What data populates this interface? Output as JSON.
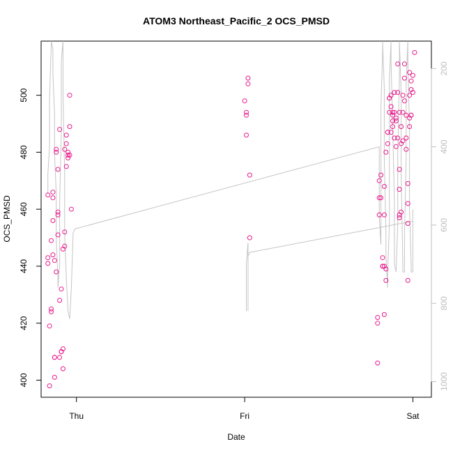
{
  "chart_data": {
    "type": "scatter",
    "title": "ATOM3 Northeast_Pacific_2 OCS_PMSD",
    "xlabel": "Date",
    "ylabel": "OCS_PMSD",
    "x_tick_labels": [
      "Thu",
      "Fri",
      "Sat"
    ],
    "x_tick_values": [
      0,
      1,
      2
    ],
    "y_ticks": [
      400,
      420,
      440,
      460,
      480,
      500
    ],
    "y_range": [
      394,
      519
    ],
    "secondary_axis": {
      "ticks": [
        200,
        400,
        600,
        800,
        1000
      ],
      "range": [
        1040,
        130
      ],
      "direction": "reversed",
      "color": "#bdbdbd"
    },
    "x_range": [
      -0.21,
      2.11
    ],
    "point_color": "#e8198b",
    "line_color": "#c4c4c4",
    "grid": false,
    "points": [
      [
        -0.17,
        465
      ],
      [
        -0.17,
        443
      ],
      [
        -0.17,
        441
      ],
      [
        -0.16,
        419
      ],
      [
        -0.16,
        398
      ],
      [
        -0.15,
        424
      ],
      [
        -0.15,
        425
      ],
      [
        -0.15,
        449
      ],
      [
        -0.14,
        456
      ],
      [
        -0.14,
        466
      ],
      [
        -0.14,
        464
      ],
      [
        -0.14,
        444
      ],
      [
        -0.13,
        408
      ],
      [
        -0.13,
        408
      ],
      [
        -0.13,
        401
      ],
      [
        -0.13,
        442
      ],
      [
        -0.12,
        438
      ],
      [
        -0.12,
        480
      ],
      [
        -0.12,
        481
      ],
      [
        -0.11,
        459
      ],
      [
        -0.11,
        451
      ],
      [
        -0.11,
        474
      ],
      [
        -0.11,
        458
      ],
      [
        -0.1,
        488
      ],
      [
        -0.1,
        428
      ],
      [
        -0.1,
        408
      ],
      [
        -0.09,
        410
      ],
      [
        -0.09,
        432
      ],
      [
        -0.09,
        410
      ],
      [
        -0.08,
        411
      ],
      [
        -0.08,
        404
      ],
      [
        -0.08,
        446
      ],
      [
        -0.07,
        447
      ],
      [
        -0.07,
        452
      ],
      [
        -0.07,
        481
      ],
      [
        -0.06,
        475
      ],
      [
        -0.06,
        483
      ],
      [
        -0.06,
        486
      ],
      [
        -0.05,
        480
      ],
      [
        -0.05,
        478
      ],
      [
        -0.05,
        479
      ],
      [
        -0.04,
        479
      ],
      [
        -0.04,
        500
      ],
      [
        -0.04,
        489
      ],
      [
        -0.03,
        460
      ],
      [
        1.0,
        498
      ],
      [
        1.01,
        486
      ],
      [
        1.01,
        494
      ],
      [
        1.01,
        493
      ],
      [
        1.02,
        506
      ],
      [
        1.02,
        504
      ],
      [
        1.03,
        472
      ],
      [
        1.03,
        450
      ],
      [
        1.79,
        406
      ],
      [
        1.79,
        422
      ],
      [
        1.79,
        420
      ],
      [
        1.8,
        458
      ],
      [
        1.8,
        470
      ],
      [
        1.8,
        464
      ],
      [
        1.81,
        464
      ],
      [
        1.81,
        472
      ],
      [
        1.82,
        440
      ],
      [
        1.82,
        443
      ],
      [
        1.82,
        440
      ],
      [
        1.83,
        423
      ],
      [
        1.83,
        458
      ],
      [
        1.83,
        468
      ],
      [
        1.83,
        440
      ],
      [
        1.84,
        435
      ],
      [
        1.84,
        439
      ],
      [
        1.84,
        480
      ],
      [
        1.85,
        483
      ],
      [
        1.85,
        487
      ],
      [
        1.85,
        487
      ],
      [
        1.86,
        494
      ],
      [
        1.86,
        499
      ],
      [
        1.86,
        499
      ],
      [
        1.87,
        500
      ],
      [
        1.87,
        487
      ],
      [
        1.87,
        496
      ],
      [
        1.88,
        493
      ],
      [
        1.88,
        489
      ],
      [
        1.88,
        491
      ],
      [
        1.88,
        494
      ],
      [
        1.89,
        501
      ],
      [
        1.89,
        494
      ],
      [
        1.89,
        485
      ],
      [
        1.9,
        482
      ],
      [
        1.9,
        492
      ],
      [
        1.9,
        491
      ],
      [
        1.91,
        501
      ],
      [
        1.91,
        511
      ],
      [
        1.91,
        485
      ],
      [
        1.92,
        494
      ],
      [
        1.92,
        458
      ],
      [
        1.92,
        474
      ],
      [
        1.92,
        467
      ],
      [
        1.92,
        457
      ],
      [
        1.93,
        459
      ],
      [
        1.93,
        489
      ],
      [
        1.93,
        483
      ],
      [
        1.94,
        484
      ],
      [
        1.94,
        494
      ],
      [
        1.94,
        500
      ],
      [
        1.95,
        511
      ],
      [
        1.95,
        506
      ],
      [
        1.95,
        498
      ],
      [
        1.96,
        493
      ],
      [
        1.96,
        481
      ],
      [
        1.96,
        485
      ],
      [
        1.97,
        435
      ],
      [
        1.97,
        469
      ],
      [
        1.97,
        455
      ],
      [
        1.97,
        462
      ],
      [
        1.98,
        492
      ],
      [
        1.98,
        500
      ],
      [
        1.98,
        508
      ],
      [
        1.98,
        489
      ],
      [
        1.99,
        505
      ],
      [
        1.99,
        502
      ],
      [
        1.99,
        493
      ],
      [
        1.99,
        493
      ],
      [
        2.0,
        501
      ],
      [
        2.0,
        507
      ],
      [
        2.01,
        515
      ]
    ],
    "profile_line": [
      [
        -0.17,
        520
      ],
      [
        -0.17,
        470
      ],
      [
        -0.16,
        400
      ],
      [
        -0.16,
        275
      ],
      [
        -0.15,
        140
      ],
      [
        -0.15,
        130
      ],
      [
        -0.14,
        150
      ],
      [
        -0.14,
        210
      ],
      [
        -0.13,
        320
      ],
      [
        -0.13,
        420
      ],
      [
        -0.12,
        520
      ],
      [
        -0.12,
        640
      ],
      [
        -0.11,
        730
      ],
      [
        -0.11,
        760
      ],
      [
        -0.1,
        700
      ],
      [
        -0.1,
        540
      ],
      [
        -0.09,
        360
      ],
      [
        -0.09,
        180
      ],
      [
        -0.08,
        130
      ],
      [
        -0.08,
        260
      ],
      [
        -0.07,
        470
      ],
      [
        -0.07,
        620
      ],
      [
        -0.06,
        740
      ],
      [
        -0.05,
        820
      ],
      [
        -0.04,
        840
      ],
      [
        -0.04,
        840
      ],
      [
        -0.03,
        760
      ],
      [
        -0.02,
        620
      ],
      [
        -0.01,
        610
      ],
      [
        1.8,
        400
      ],
      [
        1.8,
        580
      ],
      [
        1.81,
        650
      ],
      [
        1.81,
        620
      ],
      [
        1.81,
        480
      ],
      [
        1.81,
        300
      ],
      [
        1.82,
        160
      ],
      [
        1.82,
        130
      ],
      [
        1.83,
        250
      ],
      [
        1.83,
        430
      ],
      [
        1.84,
        620
      ],
      [
        1.84,
        680
      ],
      [
        1.85,
        760
      ],
      [
        1.85,
        720
      ],
      [
        1.86,
        600
      ],
      [
        1.86,
        420
      ],
      [
        1.86,
        230
      ],
      [
        1.87,
        130
      ],
      [
        1.87,
        180
      ],
      [
        1.88,
        350
      ],
      [
        1.89,
        540
      ],
      [
        1.89,
        700
      ],
      [
        1.9,
        720
      ],
      [
        1.9,
        720
      ],
      [
        1.91,
        600
      ],
      [
        1.91,
        420
      ],
      [
        1.92,
        220
      ],
      [
        1.92,
        130
      ],
      [
        1.93,
        260
      ],
      [
        1.93,
        470
      ],
      [
        1.94,
        700
      ],
      [
        1.94,
        720
      ],
      [
        1.95,
        720
      ],
      [
        1.95,
        620
      ],
      [
        1.96,
        430
      ],
      [
        1.96,
        240
      ],
      [
        1.97,
        130
      ],
      [
        1.97,
        170
      ],
      [
        1.98,
        360
      ],
      [
        1.98,
        560
      ],
      [
        1.99,
        700
      ],
      [
        1.99,
        720
      ],
      [
        2.0,
        720
      ],
      [
        2.0,
        590
      ],
      [
        2.0,
        560
      ]
    ],
    "profile_line2": [
      [
        1.01,
        820
      ],
      [
        1.01,
        700
      ],
      [
        1.02,
        645
      ],
      [
        1.02,
        820
      ],
      [
        1.02,
        680
      ],
      [
        1.03,
        670
      ],
      [
        2.0,
        590
      ]
    ]
  }
}
